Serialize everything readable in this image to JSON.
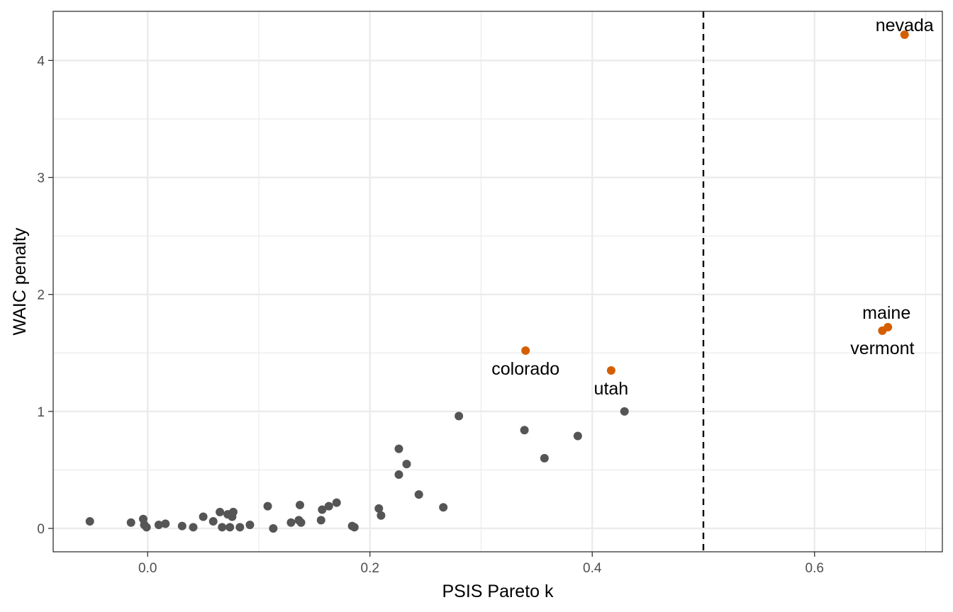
{
  "chart_data": {
    "type": "scatter",
    "xlabel": "PSIS Pareto k",
    "ylabel": "WAIC penalty",
    "xlim": [
      -0.085,
      0.715
    ],
    "ylim": [
      -0.2,
      4.42
    ],
    "x_ticks": [
      0.0,
      0.2,
      0.4,
      0.6
    ],
    "x_tick_labels": [
      "0.0",
      "0.2",
      "0.4",
      "0.6"
    ],
    "y_ticks": [
      0,
      1,
      2,
      3,
      4
    ],
    "y_tick_labels": [
      "0",
      "1",
      "2",
      "3",
      "4"
    ],
    "grid": true,
    "reference_line": {
      "axis": "x",
      "value": 0.5,
      "style": "dashed",
      "color": "#000000"
    },
    "colors": {
      "normal": "#555555",
      "highlight": "#d55e00",
      "grid": "#ebebeb",
      "panel_border": "#333333"
    },
    "points": [
      {
        "x": -0.052,
        "y": 0.06
      },
      {
        "x": -0.015,
        "y": 0.05
      },
      {
        "x": -0.004,
        "y": 0.08
      },
      {
        "x": -0.003,
        "y": 0.03
      },
      {
        "x": -0.001,
        "y": 0.01
      },
      {
        "x": 0.01,
        "y": 0.03
      },
      {
        "x": 0.016,
        "y": 0.04
      },
      {
        "x": 0.031,
        "y": 0.02
      },
      {
        "x": 0.041,
        "y": 0.01
      },
      {
        "x": 0.05,
        "y": 0.1
      },
      {
        "x": 0.059,
        "y": 0.06
      },
      {
        "x": 0.065,
        "y": 0.14
      },
      {
        "x": 0.067,
        "y": 0.01
      },
      {
        "x": 0.072,
        "y": 0.12
      },
      {
        "x": 0.074,
        "y": 0.01
      },
      {
        "x": 0.076,
        "y": 0.1
      },
      {
        "x": 0.077,
        "y": 0.14
      },
      {
        "x": 0.083,
        "y": 0.01
      },
      {
        "x": 0.092,
        "y": 0.03
      },
      {
        "x": 0.108,
        "y": 0.19
      },
      {
        "x": 0.113,
        "y": 0.0
      },
      {
        "x": 0.129,
        "y": 0.05
      },
      {
        "x": 0.136,
        "y": 0.07
      },
      {
        "x": 0.137,
        "y": 0.2
      },
      {
        "x": 0.138,
        "y": 0.05
      },
      {
        "x": 0.156,
        "y": 0.07
      },
      {
        "x": 0.157,
        "y": 0.16
      },
      {
        "x": 0.163,
        "y": 0.19
      },
      {
        "x": 0.17,
        "y": 0.22
      },
      {
        "x": 0.184,
        "y": 0.02
      },
      {
        "x": 0.186,
        "y": 0.01
      },
      {
        "x": 0.208,
        "y": 0.17
      },
      {
        "x": 0.21,
        "y": 0.11
      },
      {
        "x": 0.226,
        "y": 0.68
      },
      {
        "x": 0.226,
        "y": 0.46
      },
      {
        "x": 0.233,
        "y": 0.55
      },
      {
        "x": 0.244,
        "y": 0.29
      },
      {
        "x": 0.266,
        "y": 0.18
      },
      {
        "x": 0.28,
        "y": 0.96
      },
      {
        "x": 0.339,
        "y": 0.84
      },
      {
        "x": 0.357,
        "y": 0.6
      },
      {
        "x": 0.387,
        "y": 0.79
      },
      {
        "x": 0.429,
        "y": 1.0
      },
      {
        "x": 0.34,
        "y": 1.52,
        "label": "colorado",
        "highlight": true
      },
      {
        "x": 0.417,
        "y": 1.35,
        "label": "utah",
        "highlight": true
      },
      {
        "x": 0.681,
        "y": 4.22,
        "label": "nevada",
        "highlight": true
      },
      {
        "x": 0.666,
        "y": 1.72,
        "label": "maine",
        "highlight": true
      },
      {
        "x": 0.661,
        "y": 1.69,
        "label": "vermont",
        "highlight": true
      }
    ]
  }
}
